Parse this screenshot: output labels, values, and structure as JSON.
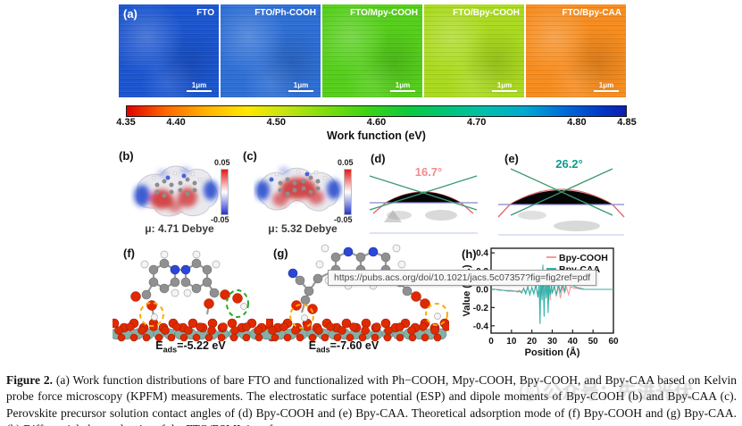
{
  "panel_a": {
    "label": "(a)",
    "scale_label": "1μm",
    "maps": [
      {
        "name": "FTO",
        "color": "#1b55d0"
      },
      {
        "name": "FTO/Ph-COOH",
        "color": "#2e6fd6"
      },
      {
        "name": "FTO/Mpy-COOH",
        "color": "#55cf1a"
      },
      {
        "name": "FTO/Bpy-COOH",
        "color": "#aada1e"
      },
      {
        "name": "FTO/Bpy-CAA",
        "color": "#f78c1e"
      }
    ],
    "colorbar": {
      "ticks": [
        "4.35",
        "4.40",
        "4.50",
        "4.60",
        "4.70",
        "4.80",
        "4.85"
      ],
      "title": "Work function (eV)"
    }
  },
  "panel_b": {
    "label": "(b)",
    "scale_top": "0.05",
    "scale_bottom": "-0.05",
    "dipole": "μ: 4.71 Debye"
  },
  "panel_c": {
    "label": "(c)",
    "scale_top": "0.05",
    "scale_bottom": "-0.05",
    "dipole": "μ: 5.32 Debye"
  },
  "panel_d": {
    "label": "(d)",
    "angle": "16.7°",
    "angle_color": "#f28b8b"
  },
  "panel_e": {
    "label": "(e)",
    "angle": "26.2°",
    "angle_color": "#0d9a90"
  },
  "panel_f": {
    "label": "(f)",
    "eads_symbol": "E",
    "eads_sub": "ads",
    "eads_value": "=-5.22 eV"
  },
  "panel_g": {
    "label": "(g)",
    "eads_symbol": "E",
    "eads_sub": "ads",
    "eads_value": "=-7.60 eV"
  },
  "panel_h": {
    "label": "(h)"
  },
  "chart_data": {
    "type": "line",
    "title": "",
    "xlabel": "Position (Å)",
    "ylabel": "Value (a.u.)",
    "xlim": [
      0,
      60
    ],
    "ylim": [
      -0.45,
      0.45
    ],
    "xticks": [
      0,
      10,
      20,
      30,
      40,
      50,
      60
    ],
    "yticks": [
      0.4,
      0.2,
      0.0,
      -0.2,
      -0.4
    ],
    "grid": false,
    "legend_position": "top-right",
    "series": [
      {
        "name": "Bpy-COOH",
        "color": "#f59b9b",
        "x": [
          0,
          2,
          4,
          6,
          8,
          10,
          12,
          13,
          14,
          15,
          16,
          17,
          18,
          19,
          20,
          21,
          22,
          23,
          23.6,
          24,
          24.4,
          25,
          25.4,
          26,
          26.4,
          27,
          27.6,
          28,
          28.4,
          29,
          29.6,
          30,
          31,
          32,
          33,
          34,
          35,
          36,
          37,
          38,
          39,
          40,
          41,
          42,
          44,
          46,
          50,
          55,
          60
        ],
        "y": [
          0,
          0,
          0,
          -0.01,
          -0.01,
          -0.01,
          -0.02,
          -0.02,
          -0.01,
          -0.03,
          0.01,
          -0.03,
          0.02,
          -0.04,
          0.01,
          -0.03,
          0.03,
          -0.06,
          0.04,
          -0.14,
          0.06,
          -0.08,
          0.12,
          -0.16,
          0.08,
          -0.06,
          0.08,
          -0.2,
          0.06,
          -0.12,
          0.04,
          -0.05,
          0.03,
          -0.08,
          0.04,
          -0.1,
          0.03,
          -0.04,
          0.02,
          -0.06,
          0.03,
          0.02,
          0.01,
          0.01,
          0,
          0,
          0,
          0,
          0
        ]
      },
      {
        "name": "Bpy-CAA",
        "color": "#2fb3aa",
        "x": [
          0,
          2,
          4,
          6,
          8,
          10,
          12,
          13,
          14,
          15,
          16,
          17,
          18,
          19,
          20,
          21,
          22,
          23,
          23.6,
          24,
          24.4,
          25,
          25.4,
          26,
          26.4,
          27,
          27.6,
          28,
          28.4,
          29,
          29.6,
          30,
          31,
          32,
          33,
          34,
          35,
          36,
          37,
          38,
          39,
          40,
          41,
          42,
          44,
          46,
          50,
          55,
          60
        ],
        "y": [
          0,
          0,
          -0.01,
          -0.01,
          -0.02,
          -0.02,
          -0.02,
          -0.03,
          -0.02,
          -0.04,
          0.01,
          -0.05,
          0.03,
          -0.06,
          0.02,
          -0.05,
          0.05,
          -0.09,
          0.06,
          -0.38,
          0.1,
          -0.12,
          0.27,
          -0.3,
          0.15,
          -0.1,
          0.12,
          -0.26,
          0.08,
          -0.06,
          0.05,
          -0.04,
          0.04,
          -0.06,
          0.05,
          -0.03,
          0.06,
          -0.02,
          0.07,
          0.05,
          0.06,
          0.05,
          0.03,
          0.02,
          0.01,
          0,
          0,
          0,
          0
        ]
      }
    ]
  },
  "tooltip": {
    "url": "https://pubs.acs.org/doi/10.1021/jacs.5c07357?fig=fig2ref=pdf"
  },
  "watermark": {
    "icon": "©",
    "text": "公众号：先进光伏"
  },
  "caption": {
    "label": "Figure 2.",
    "text": "(a) Work function distributions of bare FTO and functionalized with Ph−COOH, Mpy-COOH, Bpy-COOH, and Bpy-CAA based on Kelvin probe force microscopy (KPFM) measurements. The electrostatic surface potential (ESP) and dipole moments of Bpy-COOH (b) and Bpy-CAA (c). Perovskite precursor solution contact angles of (d) Bpy-COOH and (e) Bpy-CAA. Theoretical adsorption mode of (f) Bpy-COOH and (g) Bpy-CAA. (h) Differential charge density of the FTO/ESML interface."
  }
}
